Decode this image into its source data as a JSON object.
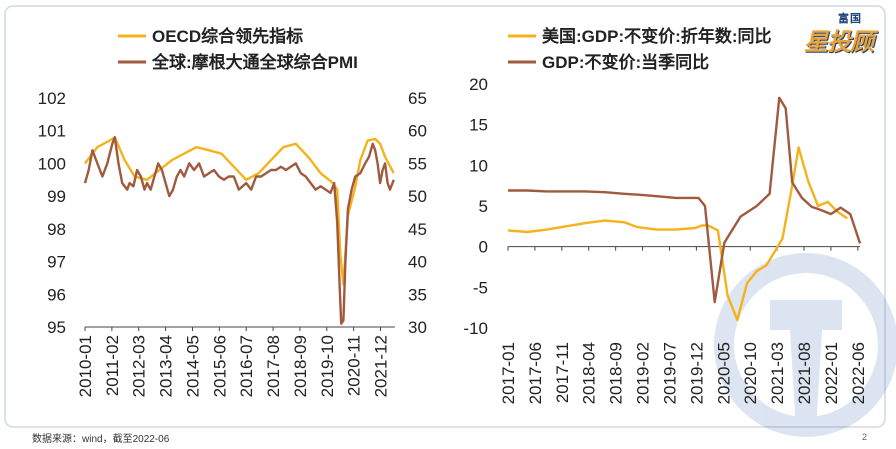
{
  "colors": {
    "orange": "#f5b21b",
    "brown": "#a05a3f",
    "frame": "#cfd8e3",
    "brand_blue": "#1f3f7a"
  },
  "brand": {
    "sub": "富国",
    "main": "星投顾"
  },
  "footer": {
    "source": "数据来源：wind，截至2022-06",
    "page": "2"
  },
  "chart_data": [
    {
      "type": "line",
      "legend": [
        "OECD综合领先指标",
        "全球:摩根大通全球综合PMI"
      ],
      "x_tick_labels": [
        "2010-01",
        "2011-02",
        "2012-03",
        "2013-04",
        "2014-05",
        "2015-06",
        "2016-07",
        "2017-08",
        "2018-09",
        "2019-10",
        "2020-11",
        "2021-12"
      ],
      "y_left": {
        "range": [
          95,
          102
        ],
        "ticks": [
          "102",
          "101",
          "100",
          "99",
          "98",
          "97",
          "96",
          "95"
        ]
      },
      "y_right": {
        "range": [
          30,
          65
        ],
        "ticks": [
          "65",
          "60",
          "55",
          "50",
          "45",
          "40",
          "35",
          "30"
        ]
      },
      "series": [
        {
          "name": "OECD综合领先指标",
          "axis": "left",
          "t": [
            2010.0,
            2010.5,
            2011.0,
            2011.2,
            2011.6,
            2012.0,
            2012.5,
            2013.0,
            2013.5,
            2014.0,
            2014.5,
            2015.0,
            2015.5,
            2016.0,
            2016.5,
            2017.0,
            2017.5,
            2018.0,
            2018.5,
            2019.0,
            2019.5,
            2020.0,
            2020.17,
            2020.3,
            2020.42,
            2020.6,
            2020.9,
            2021.1,
            2021.4,
            2021.7,
            2021.9,
            2022.1,
            2022.45
          ],
          "values": [
            100.0,
            100.5,
            100.7,
            100.8,
            100.1,
            99.6,
            99.5,
            99.8,
            100.1,
            100.3,
            100.5,
            100.4,
            100.3,
            99.9,
            99.5,
            99.7,
            100.1,
            100.5,
            100.6,
            100.2,
            99.7,
            99.4,
            99.2,
            97.2,
            96.3,
            98.4,
            99.3,
            100.1,
            100.7,
            100.75,
            100.6,
            100.2,
            99.7
          ]
        },
        {
          "name": "全球:摩根大通全球综合PMI",
          "axis": "right",
          "t": [
            2010.0,
            2010.15,
            2010.3,
            2010.5,
            2010.7,
            2010.9,
            2011.1,
            2011.2,
            2011.35,
            2011.5,
            2011.7,
            2011.8,
            2011.95,
            2012.1,
            2012.25,
            2012.4,
            2012.5,
            2012.65,
            2012.8,
            2012.95,
            2013.1,
            2013.25,
            2013.4,
            2013.55,
            2013.7,
            2013.85,
            2014.0,
            2014.2,
            2014.4,
            2014.6,
            2014.8,
            2015.0,
            2015.2,
            2015.4,
            2015.6,
            2015.8,
            2016.0,
            2016.2,
            2016.35,
            2016.5,
            2016.7,
            2016.9,
            2017.1,
            2017.3,
            2017.5,
            2017.7,
            2017.9,
            2018.1,
            2018.3,
            2018.5,
            2018.7,
            2018.9,
            2019.1,
            2019.3,
            2019.5,
            2019.7,
            2019.9,
            2020.05,
            2020.17,
            2020.25,
            2020.33,
            2020.42,
            2020.5,
            2020.6,
            2020.75,
            2020.9,
            2021.1,
            2021.3,
            2021.45,
            2021.6,
            2021.7,
            2021.8,
            2021.9,
            2022.0,
            2022.1,
            2022.2,
            2022.3,
            2022.45
          ],
          "values": [
            52.0,
            54.0,
            57.0,
            55.0,
            53.0,
            55.0,
            58.0,
            59.0,
            55.0,
            52.0,
            51.0,
            52.0,
            51.5,
            54.0,
            53.0,
            51.0,
            52.0,
            51.0,
            53.0,
            55.0,
            54.0,
            52.0,
            50.0,
            51.0,
            53.0,
            54.0,
            53.0,
            55.0,
            54.0,
            55.0,
            53.0,
            53.5,
            54.0,
            53.0,
            52.5,
            53.0,
            53.0,
            51.0,
            51.5,
            52.0,
            51.0,
            53.0,
            53.0,
            53.5,
            54.0,
            54.0,
            54.5,
            54.0,
            54.5,
            55.0,
            53.5,
            53.0,
            52.0,
            51.0,
            51.5,
            51.0,
            50.5,
            52.0,
            46.0,
            38.0,
            30.5,
            31.0,
            40.0,
            48.0,
            51.0,
            53.0,
            53.5,
            55.0,
            56.0,
            58.0,
            57.0,
            55.0,
            52.0,
            54.0,
            55.0,
            52.0,
            51.0,
            52.5
          ]
        }
      ]
    },
    {
      "type": "line",
      "legend": [
        "美国:GDP:不变价:折年数:同比",
        "GDP:不变价:当季同比"
      ],
      "x_tick_labels": [
        "2017-01",
        "2017-06",
        "2017-11",
        "2018-04",
        "2018-09",
        "2019-02",
        "2019-07",
        "2019-12",
        "2020-05",
        "2020-10",
        "2021-03",
        "2021-08",
        "2022-01",
        "2022-06"
      ],
      "y": {
        "range": [
          -10,
          20
        ],
        "ticks": [
          "20",
          "15",
          "10",
          "5",
          "0",
          "-5",
          "-10"
        ]
      },
      "series": [
        {
          "name": "美国:GDP:不变价:折年数:同比",
          "t": [
            2017.0,
            2017.3,
            2017.6,
            2017.9,
            2018.2,
            2018.5,
            2018.8,
            2019.0,
            2019.3,
            2019.6,
            2019.9,
            2020.0,
            2020.1,
            2020.25,
            2020.4,
            2020.55,
            2020.7,
            2020.85,
            2021.0,
            2021.1,
            2021.25,
            2021.4,
            2021.5,
            2021.65,
            2021.8,
            2021.95,
            2022.1,
            2022.25
          ],
          "values": [
            2.0,
            1.8,
            2.1,
            2.5,
            2.9,
            3.2,
            3.0,
            2.4,
            2.1,
            2.1,
            2.3,
            2.6,
            2.6,
            2.0,
            -6.0,
            -9.0,
            -4.5,
            -3.0,
            -2.3,
            -1.0,
            1.0,
            7.5,
            12.2,
            8.0,
            5.0,
            5.5,
            4.3,
            3.5
          ]
        },
        {
          "name": "GDP:不变价:当季同比",
          "t": [
            2017.0,
            2017.3,
            2017.6,
            2017.9,
            2018.2,
            2018.5,
            2018.8,
            2019.0,
            2019.3,
            2019.6,
            2019.8,
            2019.95,
            2020.05,
            2020.2,
            2020.35,
            2020.6,
            2020.85,
            2021.05,
            2021.2,
            2021.3,
            2021.4,
            2021.55,
            2021.7,
            2021.85,
            2022.0,
            2022.15,
            2022.3,
            2022.45
          ],
          "values": [
            6.9,
            6.9,
            6.8,
            6.8,
            6.8,
            6.7,
            6.5,
            6.4,
            6.2,
            6.0,
            6.0,
            6.0,
            5.0,
            -6.8,
            0.5,
            3.7,
            5.0,
            6.5,
            18.3,
            17.0,
            7.9,
            6.0,
            4.9,
            4.5,
            4.0,
            4.8,
            4.0,
            0.4
          ]
        }
      ]
    }
  ]
}
